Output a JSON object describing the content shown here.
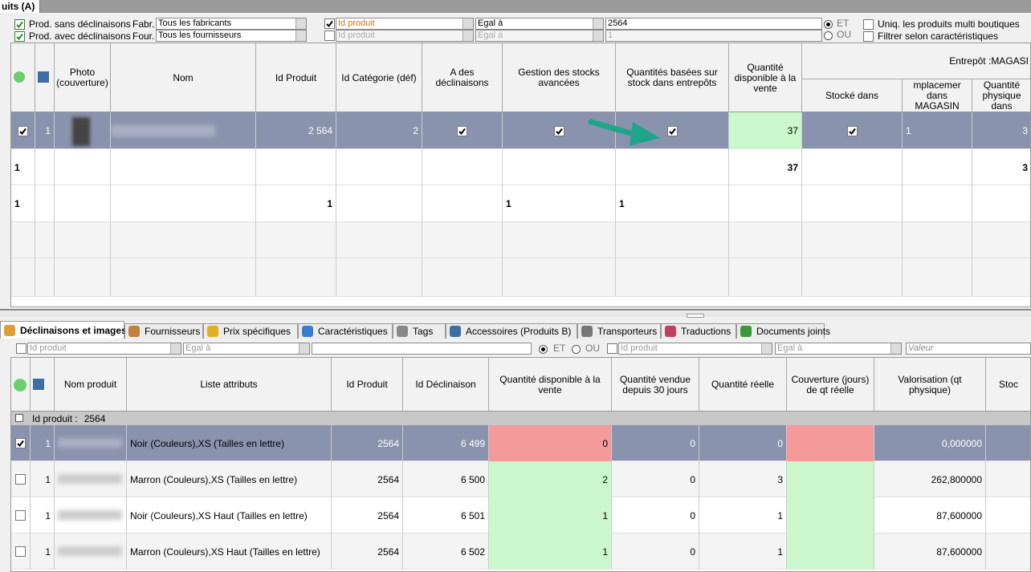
{
  "window_tab": "uits (A)",
  "filters": {
    "options": [
      {
        "label": "Prod. sans déclinaisons",
        "checked": true
      },
      {
        "label": "Prod. avec déclinaisons",
        "checked": true
      }
    ],
    "manufacturer": {
      "label": "Fabr.",
      "value": "Tous les fabricants"
    },
    "supplier": {
      "label": "Four.",
      "value": "Tous les fournisseurs"
    },
    "conditions": [
      {
        "field": "Id produit",
        "checked": true,
        "operator": "Egal à",
        "value": "2564"
      },
      {
        "field": "Id produit",
        "checked": false,
        "operator": "Egal à",
        "value": "1"
      }
    ],
    "logic": [
      {
        "label": "ET",
        "selected": true
      },
      {
        "label": "OU",
        "selected": false
      }
    ],
    "extra": [
      {
        "label": "Uniq. les produits multi boutiques",
        "checked": false
      },
      {
        "label": "Filtrer selon caractéristiques cochées",
        "checked": false
      }
    ]
  },
  "product_grid": {
    "columns": [
      null,
      null,
      "Photo (couverture)",
      "Nom",
      "Id Produit",
      "Id Catégorie (déf)",
      "A des déclinaisons",
      "Gestion des stocks avancées",
      "Quantités basées sur stock dans entrepôts",
      "Quantité disponible à la vente",
      "Stocké dans",
      "mplacemer dans MAGASIN",
      "Quantité physique dans"
    ],
    "group_header": "Entrepôt :MAGASI",
    "selected_row": 0,
    "rows": [
      [
        true,
        "1",
        null,
        null,
        "2 564",
        "2",
        true,
        true,
        true,
        "37",
        true,
        "1",
        "3"
      ],
      [
        "1",
        null,
        null,
        null,
        null,
        null,
        null,
        null,
        null,
        "37",
        null,
        null,
        "3"
      ],
      [
        "1",
        null,
        null,
        null,
        "1",
        null,
        null,
        "1",
        "1",
        null,
        null,
        null,
        null
      ]
    ]
  },
  "tabs": [
    "Déclinaisons et images",
    "Fournisseurs",
    "Prix spécifiques",
    "Caractéristiques",
    "Tags",
    "Accessoires (Produits B)",
    "Transporteurs",
    "Traductions",
    "Documents joints"
  ],
  "active_tab": 0,
  "combination_filter": {
    "conditions": [
      {
        "field": "Id produit",
        "operator": "Egal à"
      },
      {
        "field": "Id produit",
        "operator": "Egal à",
        "placeholder": "Valeur"
      }
    ],
    "logic": [
      "ET",
      "OU"
    ]
  },
  "combination_grid": {
    "columns": [
      null,
      null,
      "Nom produit",
      "Liste attributs",
      "Id Produit",
      "Id Déclinaison",
      "Quantité disponible à la vente",
      "Quantité vendue depuis 30 jours",
      "Quantité réelle",
      "Couverture (jours) de qt réelle",
      "Valorisation (qt physique)",
      "Stoc"
    ],
    "group_label": "Id produit :",
    "group_value": "2564",
    "selected_row": 0,
    "rows": [
      {
        "cells": [
          true,
          "1",
          null,
          "Noir (Couleurs),XS (Tailles en lettre)",
          "2564",
          "6 499",
          "0",
          "0",
          "0",
          null,
          "0,000000",
          null
        ],
        "status_color": "#f59a9a"
      },
      {
        "cells": [
          false,
          "1",
          null,
          "Marron (Couleurs),XS (Tailles en lettre)",
          "2564",
          "6 500",
          "2",
          "0",
          "3",
          null,
          "262,800000",
          null
        ],
        "status_color": "#ccf7cc"
      },
      {
        "cells": [
          false,
          "1",
          null,
          "Noir (Couleurs),XS Haut (Tailles en lettre)",
          "2564",
          "6 501",
          "1",
          "0",
          "1",
          null,
          "87,600000",
          null
        ],
        "status_color": "#ccf7cc"
      },
      {
        "cells": [
          false,
          "1",
          null,
          "Marron (Couleurs),XS Haut (Tailles en lettre)",
          "2564",
          "6 502",
          "1",
          "0",
          "1",
          null,
          "87,600000",
          null
        ],
        "status_color": "#ccf7cc"
      }
    ]
  }
}
